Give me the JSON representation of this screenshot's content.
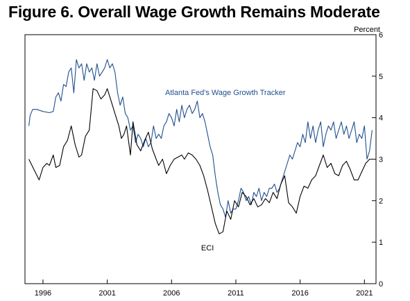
{
  "title": "Figure 6. Overall Wage Growth Remains Moderate",
  "chart_data": {
    "type": "line",
    "title": "Figure 6. Overall Wage Growth Remains Moderate",
    "ylabel": "Percent",
    "xlabel": "",
    "ylim": [
      0,
      6
    ],
    "y_ticks": [
      0,
      1,
      2,
      3,
      4,
      5,
      6
    ],
    "xlim": [
      1994.6,
      2021.9
    ],
    "x_ticks": [
      1996,
      2001,
      2006,
      2011,
      2016,
      2021
    ],
    "x_tick_labels": [
      "1996",
      "2001",
      "2006",
      "2011",
      "2016",
      "2021"
    ],
    "grid": false,
    "legend": "direct labels",
    "colors": {
      "tracker": "#1f4e8c",
      "eci": "#000000"
    },
    "series": [
      {
        "name": "Atlanta Fed's Wage Growth Tracker",
        "color": "#1f4e8c",
        "x": [
          1994.9,
          1995.0,
          1995.2,
          1995.5,
          1996.0,
          1996.5,
          1996.8,
          1997.0,
          1997.2,
          1997.4,
          1997.6,
          1997.8,
          1998.0,
          1998.2,
          1998.4,
          1998.6,
          1998.8,
          1999.0,
          1999.2,
          1999.4,
          1999.6,
          1999.8,
          2000.0,
          2000.2,
          2000.4,
          2000.6,
          2000.8,
          2001.0,
          2001.2,
          2001.4,
          2001.6,
          2001.8,
          2002.0,
          2002.2,
          2002.4,
          2002.6,
          2002.8,
          2003.0,
          2003.2,
          2003.4,
          2003.6,
          2003.8,
          2004.0,
          2004.2,
          2004.4,
          2004.6,
          2004.8,
          2005.0,
          2005.2,
          2005.4,
          2005.6,
          2005.8,
          2006.0,
          2006.2,
          2006.4,
          2006.6,
          2006.8,
          2007.0,
          2007.2,
          2007.4,
          2007.6,
          2007.8,
          2008.0,
          2008.2,
          2008.4,
          2008.6,
          2008.8,
          2009.0,
          2009.2,
          2009.4,
          2009.6,
          2009.8,
          2010.0,
          2010.2,
          2010.4,
          2010.6,
          2010.8,
          2011.0,
          2011.2,
          2011.4,
          2011.6,
          2011.8,
          2012.0,
          2012.2,
          2012.4,
          2012.6,
          2012.8,
          2013.0,
          2013.2,
          2013.4,
          2013.6,
          2013.8,
          2014.0,
          2014.2,
          2014.4,
          2014.6,
          2014.8,
          2015.0,
          2015.2,
          2015.4,
          2015.6,
          2015.8,
          2016.0,
          2016.2,
          2016.4,
          2016.6,
          2016.8,
          2017.0,
          2017.2,
          2017.4,
          2017.6,
          2017.8,
          2018.0,
          2018.2,
          2018.4,
          2018.6,
          2018.8,
          2019.0,
          2019.2,
          2019.4,
          2019.6,
          2019.8,
          2020.0,
          2020.2,
          2020.4,
          2020.6,
          2020.8,
          2021.0,
          2021.2,
          2021.4,
          2021.6
        ],
        "values": [
          3.8,
          4.05,
          4.2,
          4.2,
          4.15,
          4.12,
          4.15,
          4.5,
          4.6,
          4.4,
          4.8,
          4.75,
          5.1,
          5.2,
          4.6,
          5.4,
          5.2,
          5.3,
          4.9,
          5.3,
          5.1,
          5.2,
          4.9,
          5.3,
          5.0,
          5.1,
          5.2,
          5.4,
          5.2,
          5.3,
          5.1,
          4.6,
          4.3,
          4.5,
          4.1,
          4.0,
          3.7,
          3.8,
          3.4,
          3.6,
          3.5,
          3.3,
          3.5,
          3.3,
          3.4,
          3.8,
          3.5,
          3.6,
          3.5,
          3.8,
          3.9,
          4.1,
          4.0,
          3.8,
          4.2,
          3.9,
          4.3,
          4.0,
          4.2,
          4.3,
          4.1,
          4.2,
          4.4,
          4.0,
          4.1,
          3.9,
          3.6,
          3.3,
          3.1,
          2.6,
          2.2,
          1.9,
          1.8,
          1.6,
          2.0,
          1.7,
          1.8,
          1.8,
          2.0,
          2.3,
          2.2,
          2.0,
          2.1,
          1.9,
          2.2,
          2.1,
          2.3,
          2.0,
          2.2,
          2.1,
          2.3,
          2.3,
          2.4,
          2.2,
          2.3,
          2.5,
          2.7,
          2.9,
          3.1,
          3.0,
          3.2,
          3.4,
          3.3,
          3.6,
          3.4,
          3.9,
          3.5,
          3.8,
          3.4,
          3.7,
          3.9,
          3.3,
          3.6,
          3.8,
          3.7,
          3.9,
          3.5,
          3.7,
          3.9,
          3.6,
          3.8,
          3.5,
          3.7,
          3.9,
          3.4,
          3.6,
          3.5,
          3.8,
          3.0,
          3.2,
          3.7
        ]
      },
      {
        "name": "ECI",
        "color": "#000000",
        "x": [
          1994.9,
          1995.3,
          1995.7,
          1996.0,
          1996.3,
          1996.5,
          1996.8,
          1997.0,
          1997.3,
          1997.6,
          1997.9,
          1998.2,
          1998.5,
          1998.8,
          1999.0,
          1999.3,
          1999.6,
          1999.9,
          2000.2,
          2000.5,
          2000.8,
          2001.0,
          2001.3,
          2001.6,
          2001.9,
          2002.1,
          2002.3,
          2002.5,
          2002.8,
          2003.0,
          2003.3,
          2003.6,
          2003.9,
          2004.2,
          2004.5,
          2004.8,
          2005.0,
          2005.3,
          2005.6,
          2005.9,
          2006.2,
          2006.5,
          2006.8,
          2007.0,
          2007.3,
          2007.6,
          2007.9,
          2008.2,
          2008.5,
          2008.8,
          2009.1,
          2009.4,
          2009.7,
          2010.0,
          2010.3,
          2010.6,
          2010.9,
          2011.2,
          2011.5,
          2011.8,
          2012.1,
          2012.4,
          2012.7,
          2013.0,
          2013.3,
          2013.6,
          2013.9,
          2014.2,
          2014.5,
          2014.8,
          2015.1,
          2015.4,
          2015.7,
          2016.0,
          2016.3,
          2016.6,
          2016.9,
          2017.2,
          2017.5,
          2017.8,
          2018.1,
          2018.4,
          2018.7,
          2019.0,
          2019.3,
          2019.6,
          2019.9,
          2020.2,
          2020.5,
          2020.8,
          2021.1,
          2021.4,
          2021.6
        ],
        "values": [
          3.0,
          2.75,
          2.5,
          2.8,
          2.9,
          2.85,
          3.1,
          2.8,
          2.85,
          3.3,
          3.45,
          3.8,
          3.35,
          3.05,
          3.1,
          3.55,
          3.7,
          4.7,
          4.65,
          4.45,
          4.55,
          4.7,
          4.4,
          4.1,
          3.8,
          3.5,
          3.6,
          3.8,
          3.1,
          3.9,
          3.35,
          3.2,
          3.45,
          3.65,
          3.25,
          3.0,
          2.85,
          3.0,
          2.65,
          2.85,
          3.0,
          3.05,
          3.1,
          3.0,
          3.15,
          3.1,
          3.0,
          2.85,
          2.6,
          2.25,
          1.85,
          1.45,
          1.2,
          1.25,
          1.75,
          1.55,
          2.0,
          1.85,
          2.2,
          2.1,
          1.9,
          2.05,
          1.85,
          1.9,
          2.05,
          1.95,
          2.2,
          2.05,
          2.4,
          2.6,
          1.95,
          1.85,
          1.7,
          2.1,
          2.35,
          2.3,
          2.5,
          2.6,
          2.85,
          3.1,
          2.8,
          2.9,
          2.65,
          2.6,
          2.85,
          2.95,
          2.75,
          2.5,
          2.5,
          2.7,
          2.9,
          3.0,
          3.0
        ]
      }
    ],
    "annotations": [
      {
        "text": "Atlanta Fed's Wage Growth Tracker",
        "x": 2005.5,
        "y": 4.55,
        "series": 0
      },
      {
        "text": "ECI",
        "x": 2008.3,
        "y": 0.8,
        "series": 1
      }
    ]
  }
}
